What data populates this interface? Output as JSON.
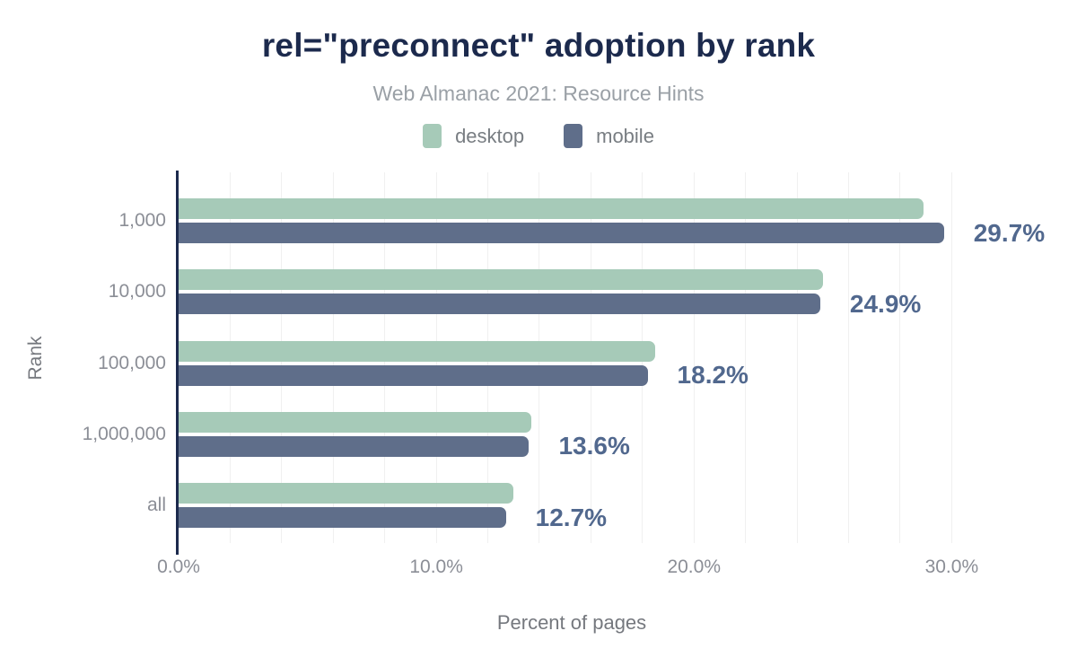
{
  "chart_data": {
    "type": "bar",
    "orientation": "horizontal_grouped",
    "title": "rel=\"preconnect\" adoption by rank",
    "subtitle": "Web Almanac 2021: Resource Hints",
    "xlabel": "Percent of pages",
    "ylabel": "Rank",
    "categories": [
      "1,000",
      "10,000",
      "100,000",
      "1,000,000",
      "all"
    ],
    "series": [
      {
        "name": "desktop",
        "color": "#a6cab8",
        "values": [
          28.9,
          25.0,
          18.5,
          13.7,
          13.0
        ]
      },
      {
        "name": "mobile",
        "color": "#5f6e8a",
        "values": [
          29.7,
          24.9,
          18.2,
          13.6,
          12.7
        ]
      }
    ],
    "value_labels": [
      "29.7%",
      "24.9%",
      "18.2%",
      "13.6%",
      "12.7%"
    ],
    "value_labels_for_series": "mobile",
    "x_ticks": [
      {
        "value": 0,
        "label": "0.0%"
      },
      {
        "value": 10,
        "label": "10.0%"
      },
      {
        "value": 20,
        "label": "20.0%"
      },
      {
        "value": 30,
        "label": "30.0%"
      }
    ],
    "xlim": [
      0,
      32.6
    ],
    "grid": true,
    "gridline_step_percent": 2,
    "gridline_max_percent": 30,
    "legend_position": "top",
    "colors": {
      "title": "#1c2a4d",
      "subtitle": "#9aa0a6",
      "legend_text": "#787d82",
      "axis_line": "#1c2a4d",
      "gridline": "#f0f0f0",
      "tick_text": "#8b8e96",
      "axis_title_text": "#75787e",
      "value_label_text": "#51688e",
      "background": "#ffffff"
    }
  }
}
